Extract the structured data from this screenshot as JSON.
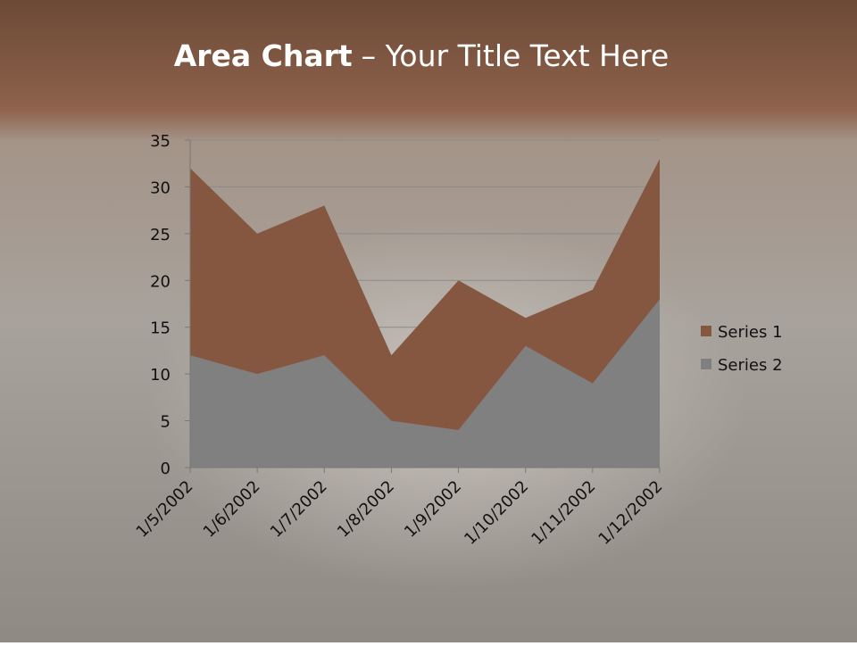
{
  "chart_data": {
    "type": "area",
    "title_bold": "Area Chart",
    "title_rest": "– Your Title Text Here",
    "categories": [
      "1/5/2002",
      "1/6/2002",
      "1/7/2002",
      "1/8/2002",
      "1/9/2002",
      "1/10/2002",
      "1/11/2002",
      "1/12/2002"
    ],
    "series": [
      {
        "name": "Series 1",
        "color": "#855741",
        "values": [
          32,
          25,
          28,
          12,
          20,
          16,
          19,
          33
        ]
      },
      {
        "name": "Series 2",
        "color": "#808080",
        "values": [
          12,
          10,
          12,
          5,
          4,
          13,
          9,
          18
        ]
      }
    ],
    "ylim": [
      0,
      35
    ],
    "yticks": [
      0,
      5,
      10,
      15,
      20,
      25,
      30,
      35
    ],
    "grid": true,
    "legend": "right"
  }
}
